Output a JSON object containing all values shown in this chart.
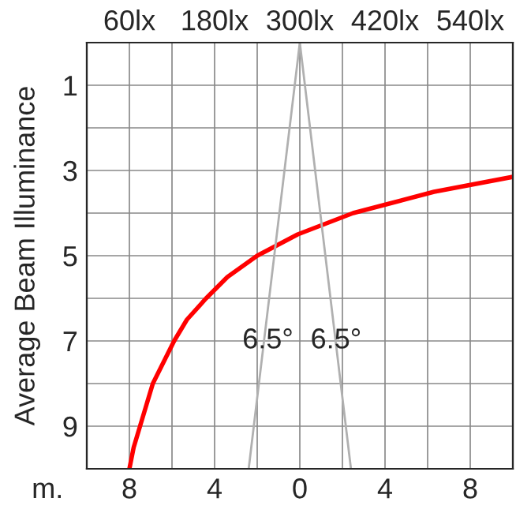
{
  "chart_data": {
    "type": "line",
    "ylabel": "Average Beam Illuminance",
    "xlabel": "m.",
    "xlim": [
      -10,
      10
    ],
    "ylim": [
      10,
      0
    ],
    "xticks": [
      {
        "value": -8,
        "label": "8"
      },
      {
        "value": -6,
        "label": null
      },
      {
        "value": -4,
        "label": "4"
      },
      {
        "value": -2,
        "label": null
      },
      {
        "value": 0,
        "label": "0"
      },
      {
        "value": 2,
        "label": null
      },
      {
        "value": 4,
        "label": "4"
      },
      {
        "value": 6,
        "label": null
      },
      {
        "value": 8,
        "label": "8"
      }
    ],
    "yticks": [
      {
        "value": 1,
        "label": "1"
      },
      {
        "value": 2,
        "label": null
      },
      {
        "value": 3,
        "label": "3"
      },
      {
        "value": 4,
        "label": null
      },
      {
        "value": 5,
        "label": "5"
      },
      {
        "value": 6,
        "label": null
      },
      {
        "value": 7,
        "label": "7"
      },
      {
        "value": 8,
        "label": null
      },
      {
        "value": 9,
        "label": "9"
      }
    ],
    "x2lim": [
      0,
      600
    ],
    "x2ticks": [
      {
        "value": 60,
        "label": "60lx"
      },
      {
        "value": 120,
        "label": null
      },
      {
        "value": 180,
        "label": "180lx"
      },
      {
        "value": 240,
        "label": null
      },
      {
        "value": 300,
        "label": "300lx"
      },
      {
        "value": 360,
        "label": null
      },
      {
        "value": 420,
        "label": "420lx"
      },
      {
        "value": 480,
        "label": null
      },
      {
        "value": 540,
        "label": "540lx"
      }
    ],
    "grid": true,
    "legend": false,
    "series": [
      {
        "color": "#ff0000",
        "x": [
          -8,
          -7.8,
          -7.5,
          -7.2,
          -6.9,
          -6.4,
          -5.9,
          -5.3,
          -4.4,
          -3.4,
          -2,
          -0.1,
          2.5,
          6.3,
          10
        ],
        "values": [
          10,
          9.5,
          9,
          8.5,
          8,
          7.5,
          7,
          6.5,
          6,
          5.5,
          5,
          4.5,
          4,
          3.5,
          3.15
        ]
      },
      {
        "color": "#b0b0b0",
        "x": [
          0,
          -2.4
        ],
        "values": [
          0,
          10
        ]
      },
      {
        "color": "#b0b0b0",
        "x": [
          0,
          2.4
        ],
        "values": [
          0,
          10
        ]
      }
    ],
    "annotations": [
      {
        "text": "6.5°",
        "x": -1.5,
        "y": 7
      },
      {
        "text": "6.5°",
        "x": 1.7,
        "y": 7
      }
    ]
  }
}
